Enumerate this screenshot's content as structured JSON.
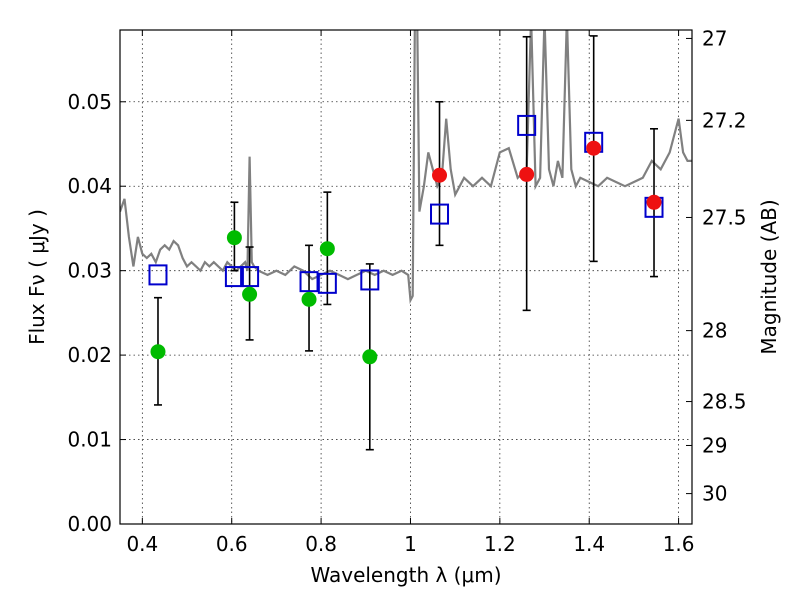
{
  "chart_data": {
    "type": "scatter",
    "xlabel": "Wavelength  λ (μm)",
    "ylabel": "Flux  Fν  ( μJy )",
    "ylabel_right": "Magnitude (AB)",
    "xlim": [
      0.35,
      1.63
    ],
    "ylim": [
      0.0,
      0.0585
    ],
    "grid": true,
    "x_ticks": [
      0.4,
      0.6,
      0.8,
      1.0,
      1.2,
      1.4,
      1.6
    ],
    "x_tick_labels": [
      "0.4",
      "0.6",
      "0.8",
      "1",
      "1.2",
      "1.4",
      "1.6"
    ],
    "y_ticks": [
      0.0,
      0.01,
      0.02,
      0.03,
      0.04,
      0.05
    ],
    "y_tick_labels": [
      "0.00",
      "0.01",
      "0.02",
      "0.03",
      "0.04",
      "0.05"
    ],
    "right_ticks": [
      {
        "label": "27",
        "flux": 0.0575
      },
      {
        "label": "27.2",
        "flux": 0.0478
      },
      {
        "label": "27.5",
        "flux": 0.0363
      },
      {
        "label": "28",
        "flux": 0.0229
      },
      {
        "label": "28.5",
        "flux": 0.0145
      },
      {
        "label": "29",
        "flux": 0.0093
      },
      {
        "label": "30",
        "flux": 0.0036
      }
    ],
    "series": [
      {
        "marker": "circle",
        "color": "#00bb00",
        "x": [
          0.435,
          0.606,
          0.64,
          0.773,
          0.814,
          0.909
        ],
        "y": [
          0.0204,
          0.0339,
          0.0272,
          0.0266,
          0.0326,
          0.0198
        ],
        "yerr_low": [
          0.0141,
          0.03,
          0.0218,
          0.0205,
          0.026,
          0.0088
        ],
        "yerr_high": [
          0.0268,
          0.0381,
          0.0328,
          0.033,
          0.0393,
          0.0308
        ]
      },
      {
        "marker": "circle",
        "color": "#ee1111",
        "x": [
          1.065,
          1.26,
          1.41,
          1.545
        ],
        "y": [
          0.0413,
          0.0414,
          0.0445,
          0.0381
        ],
        "yerr_low": [
          0.033,
          0.0253,
          0.0311,
          0.0293
        ],
        "yerr_high": [
          0.05,
          0.0577,
          0.0578,
          0.0468
        ]
      },
      {
        "marker": "square",
        "color": "#0000cc",
        "x": [
          0.435,
          0.606,
          0.64,
          0.773,
          0.814,
          0.909,
          1.065,
          1.26,
          1.41,
          1.545
        ],
        "y": [
          0.0295,
          0.0293,
          0.0293,
          0.0287,
          0.0285,
          0.0289,
          0.0367,
          0.0472,
          0.0452,
          0.0375
        ]
      },
      {
        "type": "line",
        "color": "#808080",
        "x": [
          0.35,
          0.36,
          0.37,
          0.38,
          0.39,
          0.4,
          0.41,
          0.42,
          0.43,
          0.44,
          0.45,
          0.46,
          0.47,
          0.48,
          0.49,
          0.5,
          0.51,
          0.52,
          0.53,
          0.54,
          0.55,
          0.56,
          0.57,
          0.58,
          0.59,
          0.6,
          0.61,
          0.62,
          0.63,
          0.635,
          0.64,
          0.645,
          0.65,
          0.66,
          0.68,
          0.7,
          0.72,
          0.74,
          0.76,
          0.78,
          0.8,
          0.82,
          0.84,
          0.86,
          0.88,
          0.9,
          0.92,
          0.94,
          0.96,
          0.98,
          0.995,
          1.0,
          1.005,
          1.01,
          1.015,
          1.02,
          1.03,
          1.04,
          1.05,
          1.06,
          1.07,
          1.08,
          1.09,
          1.1,
          1.12,
          1.14,
          1.16,
          1.18,
          1.2,
          1.22,
          1.24,
          1.26,
          1.27,
          1.28,
          1.29,
          1.3,
          1.31,
          1.32,
          1.33,
          1.34,
          1.35,
          1.36,
          1.37,
          1.38,
          1.4,
          1.42,
          1.44,
          1.46,
          1.48,
          1.5,
          1.52,
          1.54,
          1.56,
          1.58,
          1.59,
          1.6,
          1.61,
          1.62,
          1.63
        ],
        "y": [
          0.037,
          0.0385,
          0.034,
          0.0305,
          0.034,
          0.032,
          0.0315,
          0.032,
          0.031,
          0.0325,
          0.033,
          0.0325,
          0.0335,
          0.033,
          0.0315,
          0.0305,
          0.031,
          0.0305,
          0.03,
          0.031,
          0.0305,
          0.031,
          0.0305,
          0.03,
          0.031,
          0.0305,
          0.03,
          0.0305,
          0.031,
          0.03,
          0.0435,
          0.031,
          0.0305,
          0.03,
          0.0295,
          0.03,
          0.0295,
          0.0305,
          0.03,
          0.029,
          0.0295,
          0.03,
          0.0295,
          0.029,
          0.0295,
          0.03,
          0.0295,
          0.03,
          0.0295,
          0.03,
          0.0295,
          0.0265,
          0.027,
          0.06,
          0.06,
          0.037,
          0.04,
          0.044,
          0.042,
          0.04,
          0.041,
          0.048,
          0.042,
          0.039,
          0.041,
          0.04,
          0.041,
          0.04,
          0.044,
          0.0445,
          0.041,
          0.042,
          0.06,
          0.04,
          0.041,
          0.06,
          0.042,
          0.04,
          0.043,
          0.041,
          0.06,
          0.042,
          0.04,
          0.041,
          0.0405,
          0.04,
          0.041,
          0.0405,
          0.04,
          0.0405,
          0.041,
          0.043,
          0.042,
          0.044,
          0.046,
          0.048,
          0.044,
          0.043,
          0.043
        ]
      }
    ]
  }
}
